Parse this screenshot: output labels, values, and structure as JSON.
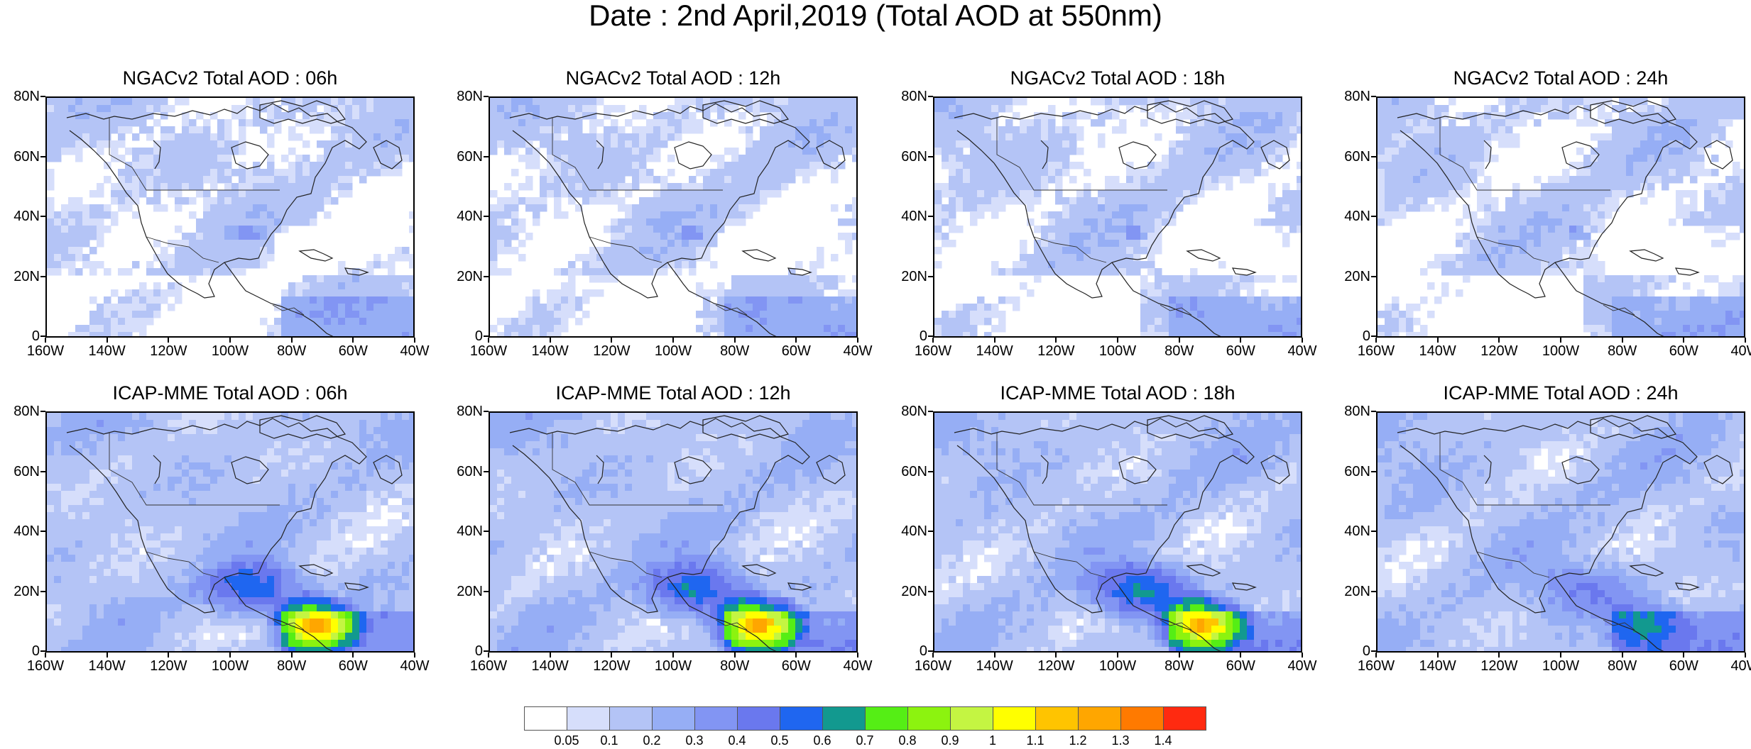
{
  "title": "Date : 2nd April,2019 (Total AOD at 550nm)",
  "lat_labels": [
    "80N",
    "60N",
    "40N",
    "20N",
    "0"
  ],
  "lon_labels": [
    "160W",
    "140W",
    "120W",
    "100W",
    "80W",
    "60W",
    "40W"
  ],
  "map_extent": {
    "lon": [
      -160,
      -40
    ],
    "lat": [
      0,
      80
    ]
  },
  "panels": [
    {
      "title": "NGACv2 Total AOD : 06h",
      "model": "NGACv2",
      "hour": "06h"
    },
    {
      "title": "NGACv2 Total AOD : 12h",
      "model": "NGACv2",
      "hour": "12h"
    },
    {
      "title": "NGACv2 Total AOD : 18h",
      "model": "NGACv2",
      "hour": "18h"
    },
    {
      "title": "NGACv2 Total AOD : 24h",
      "model": "NGACv2",
      "hour": "24h"
    },
    {
      "title": "ICAP-MME Total AOD : 06h",
      "model": "ICAP-MME",
      "hour": "06h"
    },
    {
      "title": "ICAP-MME Total AOD : 12h",
      "model": "ICAP-MME",
      "hour": "12h"
    },
    {
      "title": "ICAP-MME Total AOD : 18h",
      "model": "ICAP-MME",
      "hour": "18h"
    },
    {
      "title": "ICAP-MME Total AOD : 24h",
      "model": "ICAP-MME",
      "hour": "24h"
    }
  ],
  "colorbar": {
    "labels": [
      "0.05",
      "0.1",
      "0.2",
      "0.3",
      "0.4",
      "0.5",
      "0.6",
      "0.7",
      "0.8",
      "0.9",
      "1",
      "1.1",
      "1.2",
      "1.3",
      "1.4"
    ],
    "colors": [
      "#ffffff",
      "#d6defb",
      "#b4c4f6",
      "#96aef5",
      "#8295f3",
      "#6a78ee",
      "#1f66f0",
      "#12998f",
      "#55ee15",
      "#8cf30f",
      "#c4f542",
      "#ffff00",
      "#ffc400",
      "#ffa600",
      "#ff7a00",
      "#ff2a10"
    ]
  }
}
